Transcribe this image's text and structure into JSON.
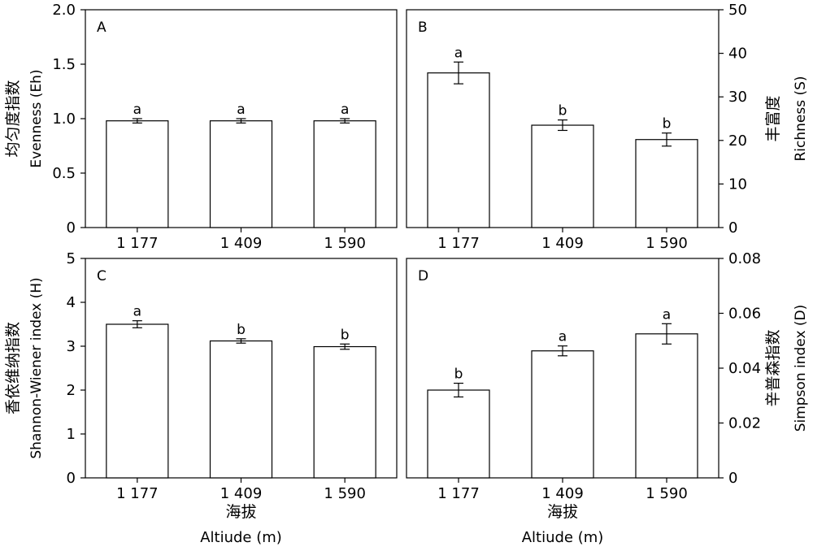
{
  "chart_data": [
    {
      "type": "bar",
      "panel": "A",
      "categories": [
        "1 177",
        "1 409",
        "1 590"
      ],
      "values": [
        0.98,
        0.98,
        0.98
      ],
      "errors": [
        0.02,
        0.02,
        0.02
      ],
      "letters": [
        "a",
        "a",
        "a"
      ],
      "ylabel_cn": "均匀度指数",
      "ylabel": "Evenness (Eh)",
      "ylim": [
        0,
        2.0
      ],
      "yticks": [
        "0",
        "0.5",
        "1.0",
        "1.5",
        "2.0"
      ],
      "xlabel_cn": "",
      "xlabel": ""
    },
    {
      "type": "bar",
      "panel": "B",
      "categories": [
        "1 177",
        "1 409",
        "1 590"
      ],
      "values": [
        35.5,
        23.5,
        20.2
      ],
      "errors": [
        2.5,
        1.2,
        1.5
      ],
      "letters": [
        "a",
        "b",
        "b"
      ],
      "ylabel_cn": "丰富度",
      "ylabel": "Richness (S)",
      "ylim": [
        0,
        50
      ],
      "yticks": [
        "0",
        "10",
        "20",
        "30",
        "40",
        "50"
      ],
      "xlabel_cn": "",
      "xlabel": ""
    },
    {
      "type": "bar",
      "panel": "C",
      "categories": [
        "1 177",
        "1 409",
        "1 590"
      ],
      "values": [
        3.5,
        3.12,
        2.99
      ],
      "errors": [
        0.08,
        0.05,
        0.06
      ],
      "letters": [
        "a",
        "b",
        "b"
      ],
      "ylabel_cn": "香依维纳指数",
      "ylabel": "Shannon-Wiener index (H)",
      "ylim": [
        0,
        5
      ],
      "yticks": [
        "0",
        "1",
        "2",
        "3",
        "4",
        "5"
      ],
      "xlabel_cn": "海拔",
      "xlabel": "Altiude (m)"
    },
    {
      "type": "bar",
      "panel": "D",
      "categories": [
        "1 177",
        "1 409",
        "1 590"
      ],
      "values": [
        0.032,
        0.0463,
        0.0525
      ],
      "errors": [
        0.0025,
        0.0018,
        0.0037
      ],
      "letters": [
        "b",
        "a",
        "a"
      ],
      "ylabel_cn": "辛普森指数",
      "ylabel": "Simpson index (D)",
      "ylim": [
        0,
        0.08
      ],
      "yticks": [
        "0",
        "0.02",
        "0.04",
        "0.06",
        "0.08"
      ],
      "xlabel_cn": "海拔",
      "xlabel": "Altiude (m)"
    }
  ]
}
